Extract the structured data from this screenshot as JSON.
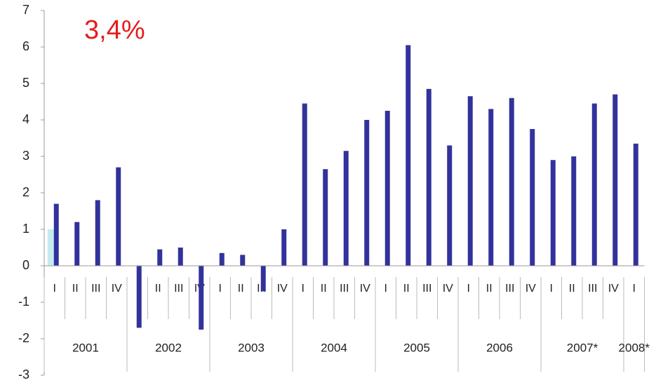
{
  "chart_data": {
    "type": "bar",
    "annotation": "3,4%",
    "categories": [
      "I",
      "II",
      "III",
      "IV",
      "I",
      "II",
      "III",
      "IV",
      "I",
      "II",
      "III",
      "IV",
      "I",
      "II",
      "III",
      "IV",
      "I",
      "II",
      "III",
      "IV",
      "I",
      "II",
      "III",
      "IV",
      "I",
      "II",
      "III",
      "IV",
      "I"
    ],
    "groups": [
      "2001",
      "2002",
      "2003",
      "2004",
      "2005",
      "2006",
      "2007*",
      "2008*"
    ],
    "series": [
      {
        "color": "#c6ecef",
        "values": [
          1.0,
          null,
          null,
          null,
          null,
          null,
          null,
          null,
          null,
          null,
          null,
          null,
          null,
          null,
          null,
          null,
          null,
          null,
          null,
          null,
          null,
          null,
          null,
          null,
          null,
          null,
          null,
          null,
          null
        ]
      },
      {
        "color": "#32329c",
        "values": [
          1.7,
          1.2,
          1.8,
          2.7,
          -1.7,
          0.45,
          0.5,
          -1.75,
          0.35,
          0.3,
          -0.7,
          1.0,
          4.45,
          2.65,
          3.15,
          4.0,
          4.25,
          6.05,
          4.85,
          3.3,
          4.65,
          4.3,
          4.6,
          3.75,
          2.9,
          3.0,
          4.45,
          4.7,
          3.35
        ]
      }
    ],
    "ylim": [
      -3,
      7
    ],
    "yticks": [
      -3,
      -2,
      -1,
      0,
      1,
      2,
      3,
      4,
      5,
      6,
      7
    ]
  }
}
